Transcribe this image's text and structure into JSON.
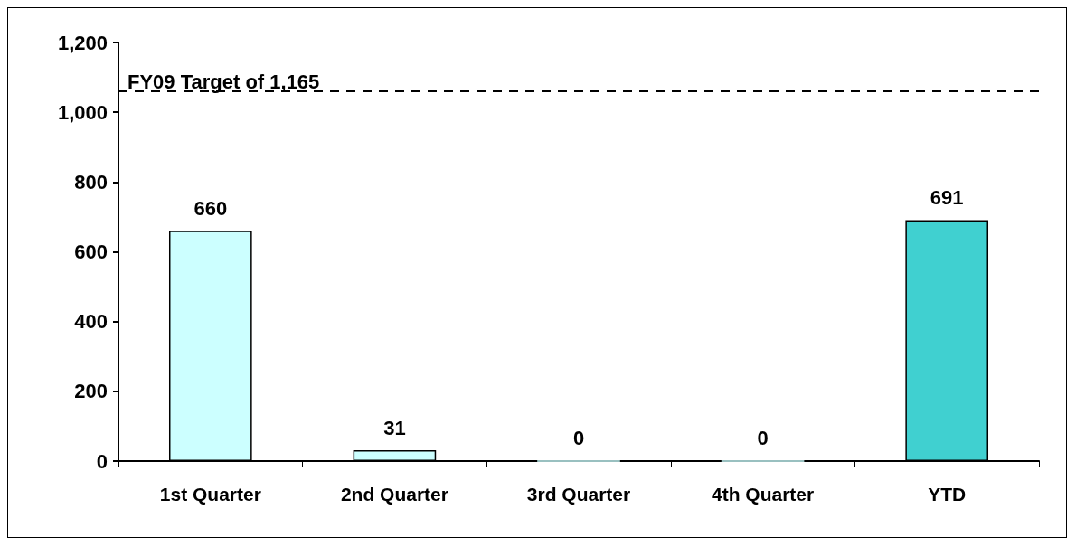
{
  "chart_data": {
    "type": "bar",
    "categories": [
      "1st Quarter",
      "2nd Quarter",
      "3rd Quarter",
      "4th Quarter",
      "YTD"
    ],
    "values": [
      660,
      31,
      0,
      0,
      691
    ],
    "colors": [
      "#ccffff",
      "#ccffff",
      "#ccffff",
      "#ccffff",
      "#40d0d0"
    ],
    "ylim": [
      0,
      1200
    ],
    "yticks": [
      {
        "value": 0,
        "label": "0"
      },
      {
        "value": 200,
        "label": "200"
      },
      {
        "value": 400,
        "label": "400"
      },
      {
        "value": 600,
        "label": "600"
      },
      {
        "value": 800,
        "label": "800"
      },
      {
        "value": 1000,
        "label": "1,000"
      },
      {
        "value": 1200,
        "label": "1,200"
      }
    ],
    "ref_lines": [
      {
        "axis": "y",
        "value": 1060,
        "label": "FY09 Target of 1,165",
        "line_style": "dashed",
        "color": "#000000"
      }
    ],
    "data_labels": true,
    "grid": false
  }
}
